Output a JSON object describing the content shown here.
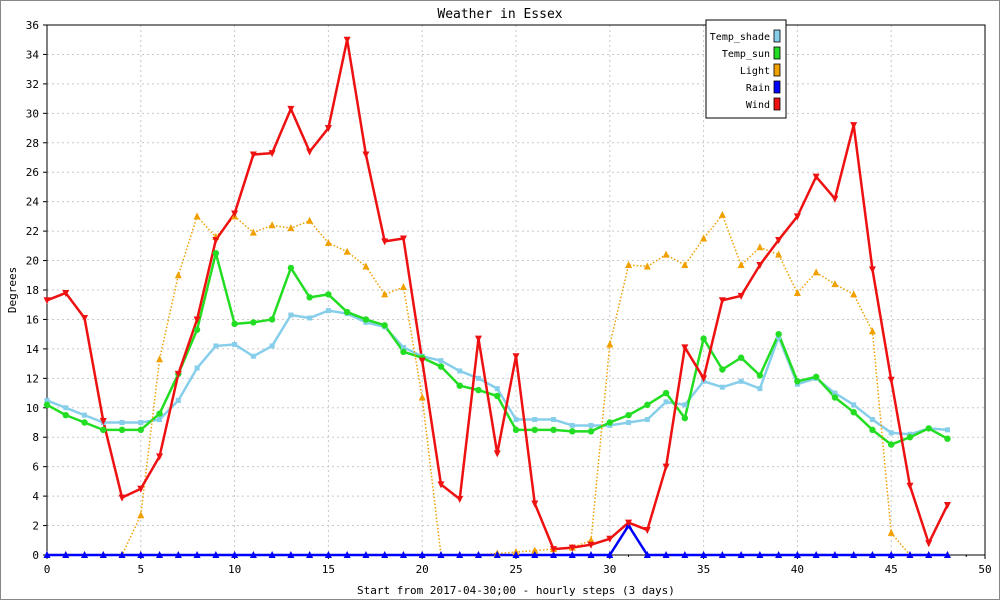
{
  "chart_data": {
    "type": "line",
    "title": "Weather in Essex",
    "xlabel": "Start from 2017-04-30;00 - hourly steps (3 days)",
    "ylabel": "Degrees",
    "xlim": [
      0,
      50
    ],
    "ylim": [
      0,
      36
    ],
    "xticks": [
      0,
      5,
      10,
      15,
      20,
      25,
      30,
      35,
      40,
      45,
      50
    ],
    "yticks": [
      0,
      2,
      4,
      6,
      8,
      10,
      12,
      14,
      16,
      18,
      20,
      22,
      24,
      26,
      28,
      30,
      32,
      34,
      36
    ],
    "grid": true,
    "legend_position": "top-right",
    "series": [
      {
        "name": "Temp_shade",
        "color": "#87ceeb",
        "marker": "square",
        "line": "solid",
        "values": [
          10.5,
          10.0,
          9.5,
          9.0,
          9.0,
          9.0,
          9.2,
          10.5,
          12.7,
          14.2,
          14.3,
          13.5,
          14.2,
          16.3,
          16.1,
          16.6,
          16.4,
          15.8,
          15.5,
          14.1,
          13.5,
          13.2,
          12.5,
          12.0,
          11.3,
          9.2,
          9.2,
          9.2,
          8.8,
          8.8,
          8.8,
          9.0,
          9.2,
          10.4,
          10.2,
          11.8,
          11.4,
          11.8,
          11.3,
          14.8,
          11.6,
          12.0,
          11.0,
          10.2,
          9.2,
          8.3,
          8.2,
          8.6,
          8.5
        ]
      },
      {
        "name": "Temp_sun",
        "color": "#22dd22",
        "marker": "circle",
        "line": "solid",
        "values": [
          10.2,
          9.5,
          9.0,
          8.5,
          8.5,
          8.5,
          9.6,
          12.3,
          15.3,
          20.5,
          15.7,
          15.8,
          16.0,
          19.5,
          17.5,
          17.7,
          16.5,
          16.0,
          15.6,
          13.8,
          13.4,
          12.8,
          11.5,
          11.2,
          10.8,
          8.5,
          8.5,
          8.5,
          8.4,
          8.4,
          9.0,
          9.5,
          10.2,
          11.0,
          9.3,
          14.7,
          12.6,
          13.4,
          12.2,
          15.0,
          11.8,
          12.1,
          10.7,
          9.7,
          8.5,
          7.5,
          8.0,
          8.6,
          7.9
        ]
      },
      {
        "name": "Light",
        "color": "#f0a000",
        "marker": "triangle-up",
        "line": "dotted",
        "values": [
          0,
          0,
          0,
          0,
          0,
          2.7,
          13.3,
          19.0,
          23.0,
          21.6,
          23.0,
          21.9,
          22.4,
          22.2,
          22.7,
          21.2,
          20.6,
          19.6,
          17.7,
          18.2,
          10.7,
          0,
          0,
          0,
          0.1,
          0.2,
          0.3,
          0.4,
          0.5,
          1.0,
          14.3,
          19.7,
          19.6,
          20.4,
          19.7,
          21.5,
          23.1,
          19.7,
          20.9,
          20.4,
          17.8,
          19.2,
          18.4,
          17.7,
          15.2,
          1.5,
          0,
          0,
          0
        ]
      },
      {
        "name": "Rain",
        "color": "#0000ff",
        "marker": "triangle-up",
        "line": "solid",
        "values": [
          0,
          0,
          0,
          0,
          0,
          0,
          0,
          0,
          0,
          0,
          0,
          0,
          0,
          0,
          0,
          0,
          0,
          0,
          0,
          0,
          0,
          0,
          0,
          0,
          0,
          0,
          0,
          0,
          0,
          0,
          0,
          2.0,
          0,
          0,
          0,
          0,
          0,
          0,
          0,
          0,
          0,
          0,
          0,
          0,
          0,
          0,
          0,
          0,
          0
        ]
      },
      {
        "name": "Wind",
        "color": "#ee1111",
        "marker": "triangle-down",
        "line": "solid",
        "values": [
          17.3,
          17.8,
          16.1,
          9.1,
          3.9,
          4.5,
          6.7,
          12.3,
          16.0,
          21.4,
          23.2,
          27.2,
          27.3,
          30.3,
          27.4,
          29.0,
          35.0,
          27.2,
          21.3,
          21.5,
          13.2,
          4.8,
          3.8,
          14.7,
          6.9,
          13.5,
          3.5,
          0.4,
          0.5,
          0.7,
          1.1,
          2.2,
          1.7,
          6.0,
          14.1,
          12.0,
          17.3,
          17.6,
          19.7,
          21.4,
          23.0,
          25.7,
          24.2,
          29.2,
          19.4,
          11.9,
          4.7,
          0.8,
          3.4
        ]
      }
    ]
  }
}
